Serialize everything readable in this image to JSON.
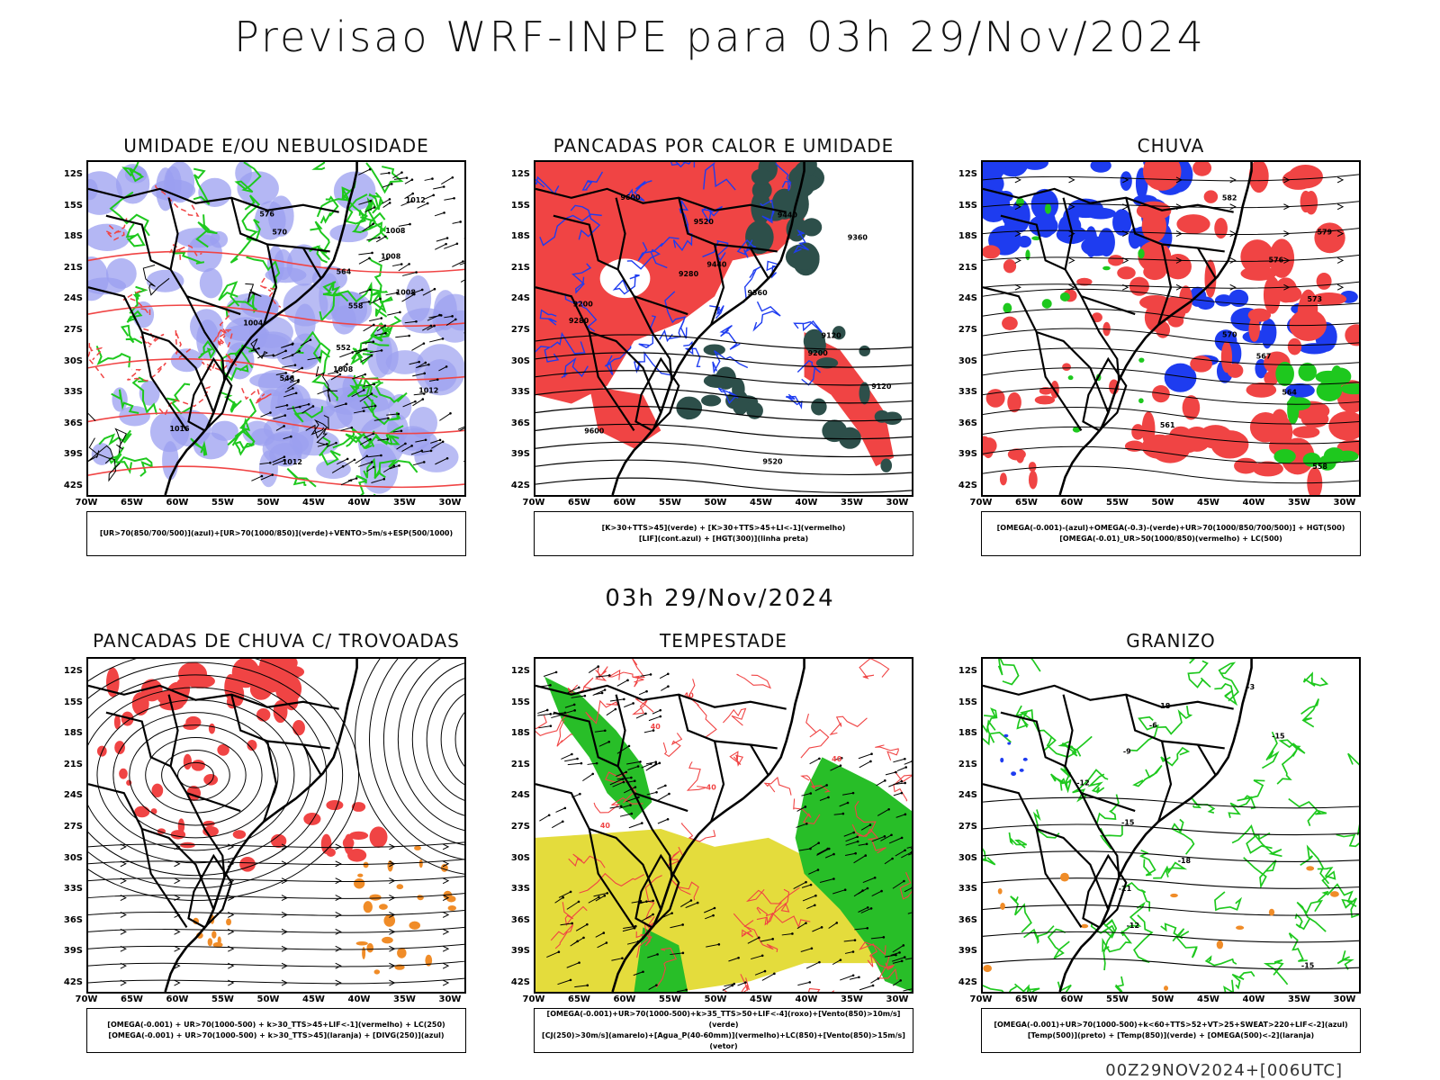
{
  "title": "Previsao WRF-INPE  para 03h 29/Nov/2024",
  "mid_title": "03h 29/Nov/2024",
  "footer": "00Z29NOV2024+[006UTC]",
  "axes": {
    "y_ticks": [
      "12S",
      "15S",
      "18S",
      "21S",
      "24S",
      "27S",
      "30S",
      "33S",
      "36S",
      "39S",
      "42S"
    ],
    "x_ticks": [
      "70W",
      "65W",
      "60W",
      "55W",
      "50W",
      "45W",
      "40W",
      "35W",
      "30W"
    ]
  },
  "colors": {
    "blue_humidity": "#9b9ff0",
    "green": "#1ec81e",
    "red": "#f04444",
    "dark_teal": "#2d4f4a",
    "blue": "#1e3cf0",
    "yellow": "#e4dc3c",
    "orange": "#f08c28"
  },
  "panels": [
    {
      "id": "umidade",
      "title": "UMIDADE E/OU NEBULOSIDADE",
      "legend": [
        "[UR>70(850/700/500)](azul)+[UR>70(1000/850)](verde)+VENTO>5m/s+ESP(500/1000)"
      ],
      "contour_labels": [
        "1012",
        "1008",
        "1008",
        "1008",
        "1004",
        "1008",
        "1012",
        "1016",
        "1012",
        "576",
        "570",
        "564",
        "558",
        "552",
        "546"
      ]
    },
    {
      "id": "pancadas-calor",
      "title": "PANCADAS POR CALOR E UMIDADE",
      "legend": [
        "[K>30+TTS>45](verde) + [K>30+TTS>45+LI<-1](vermelho)",
        "[LIF](cont.azul) + [HGT(300)](linha preta)"
      ],
      "contour_labels": [
        "9600",
        "9520",
        "9440",
        "9360",
        "9280",
        "9200",
        "9120",
        "9600",
        "9520",
        "9440",
        "9360",
        "9280",
        "9200",
        "9120"
      ]
    },
    {
      "id": "chuva",
      "title": "CHUVA",
      "legend": [
        "[OMEGA(-0.001)-(azul)+OMEGA(-0.3)-(verde)+UR>70(1000/850/700/500)] + HGT(500)",
        "[OMEGA(-0.01)_UR>50(1000/850)(vermelho) + LC(500)"
      ],
      "contour_labels": [
        "582",
        "579",
        "576",
        "573",
        "570",
        "567",
        "564",
        "561",
        "558"
      ]
    },
    {
      "id": "pancadas-trovoadas",
      "title": "PANCADAS DE CHUVA C/ TROVOADAS",
      "legend": [
        "[OMEGA(-0.001) + UR>70(1000-500) + k>30_TTS>45+LIF<-1](vermelho) + LC(250)",
        "[OMEGA(-0.001) + UR>70(1000-500) + k>30_TTS>45](laranja) + [DIVG(250)](azul)"
      ],
      "contour_labels": []
    },
    {
      "id": "tempestade",
      "title": "TEMPESTADE",
      "legend": [
        "[OMEGA(-0.001)+UR>70(1000-500)+k>35_TTS>50+LIF<-4](roxo)+[Vento(850)>10m/s](verde)",
        "[CJ(250)>30m/s](amarelo)+[Agua_P(40-60mm)](vermelho)+LC(850)+[Vento(850)>15m/s](vetor)"
      ],
      "contour_labels": [
        "40",
        "40",
        "40",
        "40",
        "40"
      ]
    },
    {
      "id": "granizo",
      "title": "GRANIZO",
      "legend": [
        "[OMEGA(-0.001)+UR>70(1000-500)+k<60+TTS>52+VT>25+SWEAT>220+LIF<-2](azul)",
        "[Temp(500)](preto) + [Temp(850)](verde) + [OMEGA(500)<-2](laranja)"
      ],
      "contour_labels": [
        "-3",
        "-6",
        "-9",
        "-12",
        "-15",
        "-18",
        "-21",
        "-12",
        "-15",
        "-18",
        "-15"
      ]
    }
  ]
}
